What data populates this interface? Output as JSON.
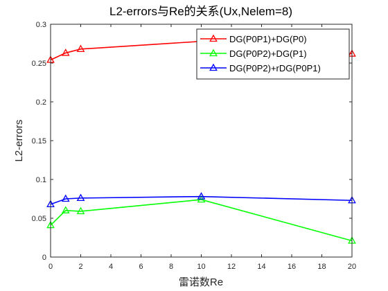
{
  "chart_data": {
    "type": "line",
    "title": "L2-errors与Re的关系(Ux,Nelem=8)",
    "xlabel": "雷诺数Re",
    "ylabel": "L2-errors",
    "x": [
      0,
      1,
      2,
      10,
      20
    ],
    "xlim": [
      0,
      20
    ],
    "ylim": [
      0,
      0.3
    ],
    "xticks": [
      0,
      2,
      4,
      6,
      8,
      10,
      12,
      14,
      16,
      18,
      20
    ],
    "yticks": [
      0,
      0.05,
      0.1,
      0.15,
      0.2,
      0.25,
      0.3
    ],
    "xtick_labels": [
      "0",
      "2",
      "4",
      "6",
      "8",
      "10",
      "12",
      "14",
      "16",
      "18",
      "20"
    ],
    "ytick_labels": [
      "0",
      "0.05",
      "0.1",
      "0.15",
      "0.2",
      "0.25",
      "0.3"
    ],
    "grid": false,
    "legend_position": "top-right",
    "marker": "triangle",
    "series": [
      {
        "name": "DG(P0P1)+DG(P0)",
        "color": "#ff0000",
        "values": [
          0.254,
          0.263,
          0.268,
          0.278,
          0.262
        ]
      },
      {
        "name": "DG(P0P2)+DG(P1)",
        "color": "#00ff00",
        "values": [
          0.041,
          0.06,
          0.059,
          0.074,
          0.021
        ]
      },
      {
        "name": "DG(P0P2)+rDG(P0P1)",
        "color": "#0000ff",
        "values": [
          0.068,
          0.075,
          0.076,
          0.078,
          0.073
        ]
      }
    ]
  }
}
